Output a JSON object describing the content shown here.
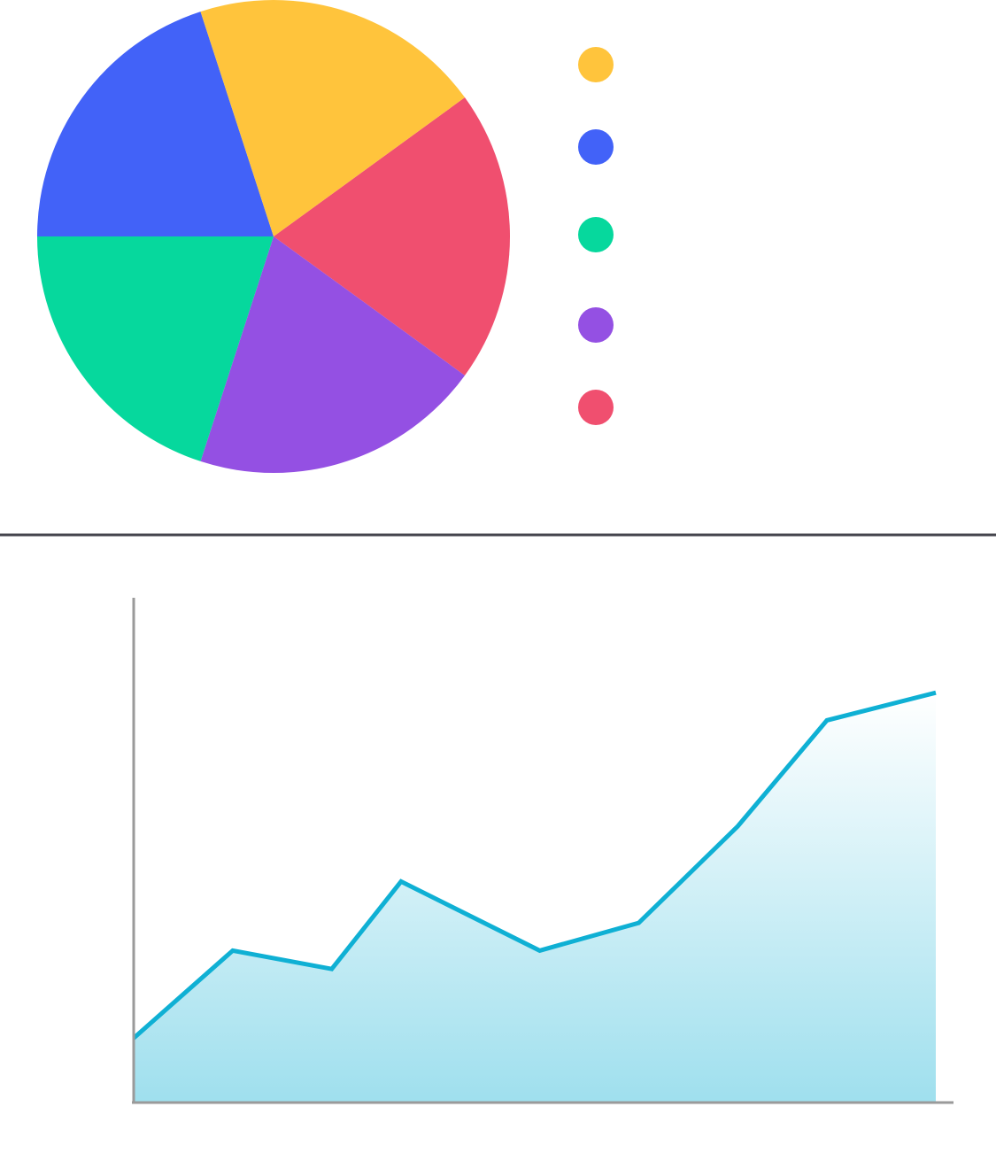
{
  "colors": {
    "background": "#ffffff",
    "divider": "#45454d",
    "axis": "#9a9a9a",
    "line": "#0fb0d4",
    "area_top": "#0fb0d4",
    "area_bottom": "#0fb0d4"
  },
  "chart_data": [
    {
      "type": "pie",
      "title": "",
      "start_angle_deg": -36,
      "slices": [
        {
          "value": 20,
          "color": "#f04f6f"
        },
        {
          "value": 20,
          "color": "#9450e3"
        },
        {
          "value": 20,
          "color": "#06d89d"
        },
        {
          "value": 20,
          "color": "#4262f8"
        },
        {
          "value": 20,
          "color": "#ffc43c"
        }
      ],
      "legend": {
        "placement": "right",
        "entries": [
          {
            "label": "",
            "color": "#ffc43c"
          },
          {
            "label": "",
            "color": "#4262f8"
          },
          {
            "label": "",
            "color": "#06d89d"
          },
          {
            "label": "",
            "color": "#9450e3"
          },
          {
            "label": "",
            "color": "#f04f6f"
          }
        ]
      }
    },
    {
      "type": "area",
      "title": "",
      "xlabel": "",
      "ylabel": "",
      "grid": false,
      "xlim": [
        0,
        9
      ],
      "ylim": [
        0,
        100
      ],
      "x": [
        0,
        1,
        2,
        2.7,
        4.1,
        5.1,
        6.1,
        7,
        8.1
      ],
      "series": [
        {
          "values": [
            14,
            33,
            29,
            48,
            33,
            39,
            60,
            83,
            89
          ]
        }
      ]
    }
  ]
}
